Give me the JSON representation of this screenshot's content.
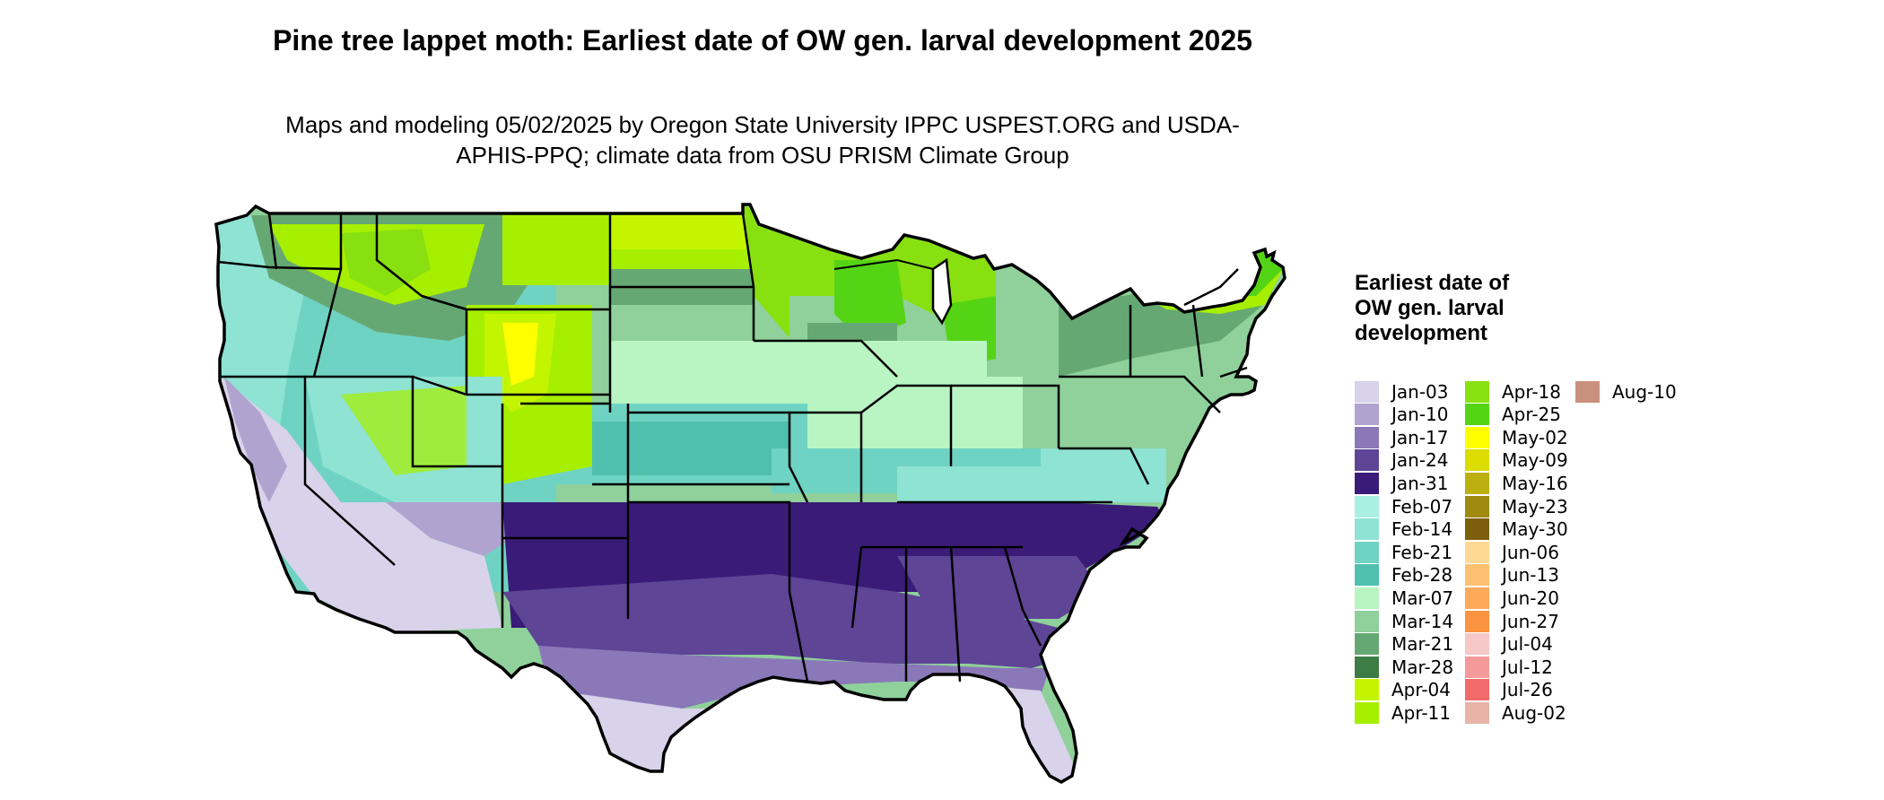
{
  "title": "Pine tree lappet moth: Earliest date of OW gen. larval development 2025",
  "subtitle": "Maps and modeling 05/02/2025 by Oregon State University IPPC USPEST.ORG and USDA-APHIS-PPQ; climate data from OSU PRISM Climate Group",
  "legend": {
    "title": "Earliest date of OW gen. larval development",
    "items": [
      {
        "label": "Jan-03",
        "color": "#d8d2ea"
      },
      {
        "label": "Jan-10",
        "color": "#b0a3cf"
      },
      {
        "label": "Jan-17",
        "color": "#8a78b8"
      },
      {
        "label": "Jan-24",
        "color": "#5e4596"
      },
      {
        "label": "Jan-31",
        "color": "#3a1c78"
      },
      {
        "label": "Feb-07",
        "color": "#a9f0e2"
      },
      {
        "label": "Feb-14",
        "color": "#8ee3d3"
      },
      {
        "label": "Feb-21",
        "color": "#6fd3c3"
      },
      {
        "label": "Feb-28",
        "color": "#50c0ae"
      },
      {
        "label": "Mar-07",
        "color": "#b8f5c2"
      },
      {
        "label": "Mar-14",
        "color": "#8fd09b"
      },
      {
        "label": "Mar-21",
        "color": "#66a874"
      },
      {
        "label": "Mar-28",
        "color": "#3d7c45"
      },
      {
        "label": "Apr-04",
        "color": "#c4f500"
      },
      {
        "label": "Apr-11",
        "color": "#a6ef00"
      },
      {
        "label": "Apr-18",
        "color": "#88e010"
      },
      {
        "label": "Apr-25",
        "color": "#55d415"
      },
      {
        "label": "May-02",
        "color": "#ffff00"
      },
      {
        "label": "May-09",
        "color": "#dcdc00"
      },
      {
        "label": "May-16",
        "color": "#bcb010"
      },
      {
        "label": "May-23",
        "color": "#a08a10"
      },
      {
        "label": "May-30",
        "color": "#7c5e0c"
      },
      {
        "label": "Jun-06",
        "color": "#ffd896"
      },
      {
        "label": "Jun-13",
        "color": "#fdc070"
      },
      {
        "label": "Jun-20",
        "color": "#fca95a"
      },
      {
        "label": "Jun-27",
        "color": "#fa9440"
      },
      {
        "label": "Jul-04",
        "color": "#f7c8c8"
      },
      {
        "label": "Jul-12",
        "color": "#f59a9a"
      },
      {
        "label": "Jul-26",
        "color": "#f26a6a"
      },
      {
        "label": "Aug-02",
        "color": "#e8b4a8"
      },
      {
        "label": "Aug-10",
        "color": "#c9907e"
      }
    ]
  }
}
